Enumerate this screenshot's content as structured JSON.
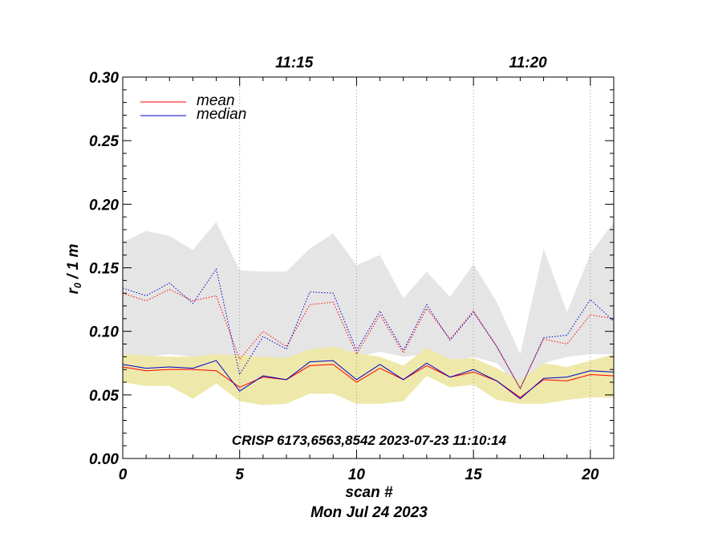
{
  "chart_data": {
    "type": "line",
    "xlabel": "scan #",
    "date_label": "Mon Jul 24 2023",
    "ylabel_main": "r",
    "ylabel_sub": "0",
    "ylabel_rest": " / 1 m",
    "annotation": "CRISP 6173,6563,8542 2023-07-23 11:10:14",
    "xlim": [
      0,
      21
    ],
    "ylim": [
      0,
      0.3
    ],
    "x_ticks": [
      0,
      5,
      10,
      15,
      20
    ],
    "x_tick_labels": [
      "0",
      "5",
      "10",
      "15",
      "20"
    ],
    "y_ticks": [
      0.0,
      0.05,
      0.1,
      0.15,
      0.2,
      0.25,
      0.3
    ],
    "y_tick_labels": [
      "0.00",
      "0.05",
      "0.10",
      "0.15",
      "0.20",
      "0.25",
      "0.30"
    ],
    "top_axis": [
      {
        "label": "11:15",
        "x": 5
      },
      {
        "label": "11:20",
        "x": 15
      }
    ],
    "vgrid_x": [
      5,
      10,
      15,
      20
    ],
    "x": [
      0,
      1,
      2,
      3,
      4,
      5,
      6,
      7,
      8,
      9,
      10,
      11,
      12,
      13,
      14,
      15,
      16,
      17,
      18,
      19,
      20,
      21
    ],
    "bands": [
      {
        "color": "#e5e5e5",
        "lower": [
          0.082,
          0.08,
          0.082,
          0.08,
          0.082,
          0.058,
          0.063,
          0.06,
          0.072,
          0.073,
          0.08,
          0.084,
          0.08,
          0.082,
          0.076,
          0.08,
          0.075,
          0.055,
          0.075,
          0.08,
          0.082,
          0.082
        ],
        "upper": [
          0.17,
          0.179,
          0.175,
          0.164,
          0.186,
          0.148,
          0.147,
          0.147,
          0.165,
          0.177,
          0.152,
          0.16,
          0.126,
          0.147,
          0.127,
          0.153,
          0.123,
          0.082,
          0.165,
          0.115,
          0.161,
          0.186
        ]
      },
      {
        "color": "#eee8aa",
        "lower": [
          0.06,
          0.057,
          0.057,
          0.047,
          0.059,
          0.045,
          0.042,
          0.043,
          0.051,
          0.051,
          0.043,
          0.043,
          0.045,
          0.065,
          0.056,
          0.058,
          0.046,
          0.043,
          0.043,
          0.046,
          0.048,
          0.048
        ],
        "upper": [
          0.082,
          0.081,
          0.08,
          0.08,
          0.082,
          0.081,
          0.08,
          0.079,
          0.086,
          0.088,
          0.083,
          0.08,
          0.073,
          0.087,
          0.078,
          0.079,
          0.071,
          0.061,
          0.075,
          0.072,
          0.077,
          0.082
        ]
      }
    ],
    "series": [
      {
        "name": "mean",
        "color": "#ff0000",
        "style": "solid",
        "values": [
          0.072,
          0.069,
          0.07,
          0.07,
          0.069,
          0.056,
          0.064,
          0.062,
          0.073,
          0.074,
          0.06,
          0.071,
          0.062,
          0.073,
          0.064,
          0.068,
          0.061,
          0.048,
          0.062,
          0.061,
          0.066,
          0.065
        ]
      },
      {
        "name": "median",
        "color": "#0000cc",
        "style": "solid",
        "values": [
          0.074,
          0.071,
          0.072,
          0.071,
          0.077,
          0.053,
          0.065,
          0.062,
          0.076,
          0.077,
          0.062,
          0.074,
          0.062,
          0.075,
          0.064,
          0.07,
          0.061,
          0.047,
          0.063,
          0.064,
          0.069,
          0.068
        ]
      },
      {
        "color": "#ff0000",
        "style": "dotted",
        "values": [
          0.13,
          0.124,
          0.133,
          0.124,
          0.128,
          0.078,
          0.1,
          0.088,
          0.121,
          0.123,
          0.082,
          0.113,
          0.083,
          0.118,
          0.094,
          0.116,
          0.088,
          0.055,
          0.094,
          0.09,
          0.113,
          0.11
        ]
      },
      {
        "color": "#0000cc",
        "style": "dotted",
        "values": [
          0.134,
          0.128,
          0.138,
          0.122,
          0.149,
          0.066,
          0.096,
          0.086,
          0.131,
          0.13,
          0.085,
          0.116,
          0.085,
          0.121,
          0.093,
          0.115,
          0.088,
          0.055,
          0.095,
          0.097,
          0.125,
          0.108
        ]
      }
    ],
    "legend": [
      {
        "name": "mean",
        "color": "#ff0000"
      },
      {
        "name": "median",
        "color": "#0000cc"
      }
    ],
    "legend_position": "top-left"
  }
}
